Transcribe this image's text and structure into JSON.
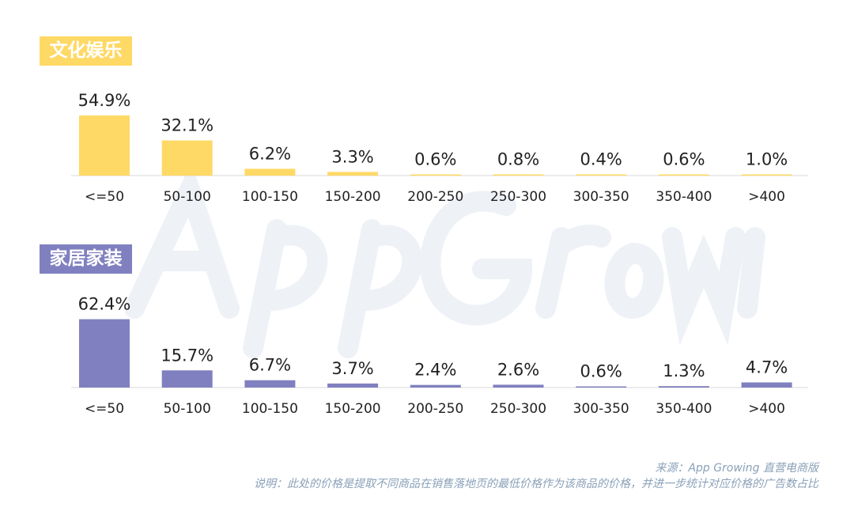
{
  "watermark": "App Growing",
  "chart_data": [
    {
      "type": "bar",
      "title": "文化娱乐",
      "color": "#FFD966",
      "categories": [
        "<=50",
        "50-100",
        "100-150",
        "150-200",
        "200-250",
        "250-300",
        "300-350",
        "350-400",
        ">400"
      ],
      "values": [
        54.9,
        32.1,
        6.2,
        3.3,
        0.6,
        0.8,
        0.4,
        0.6,
        1.0
      ],
      "labels": [
        "54.9%",
        "32.1%",
        "6.2%",
        "3.3%",
        "0.6%",
        "0.8%",
        "0.4%",
        "0.6%",
        "1.0%"
      ],
      "grid": false
    },
    {
      "type": "bar",
      "title": "家居家装",
      "color": "#8080C0",
      "categories": [
        "<=50",
        "50-100",
        "100-150",
        "150-200",
        "200-250",
        "250-300",
        "300-350",
        "350-400",
        ">400"
      ],
      "values": [
        62.4,
        15.7,
        6.7,
        3.7,
        2.4,
        2.6,
        0.6,
        1.3,
        4.7
      ],
      "labels": [
        "62.4%",
        "15.7%",
        "6.7%",
        "3.7%",
        "2.4%",
        "2.6%",
        "0.6%",
        "1.3%",
        "4.7%"
      ],
      "grid": false
    }
  ],
  "footer": {
    "source": "来源：App Growing 直营电商版",
    "note": "说明：此处的价格是提取不同商品在销售落地页的最低价格作为该商品的价格，并进一步统计对应价格的广告数占比"
  }
}
